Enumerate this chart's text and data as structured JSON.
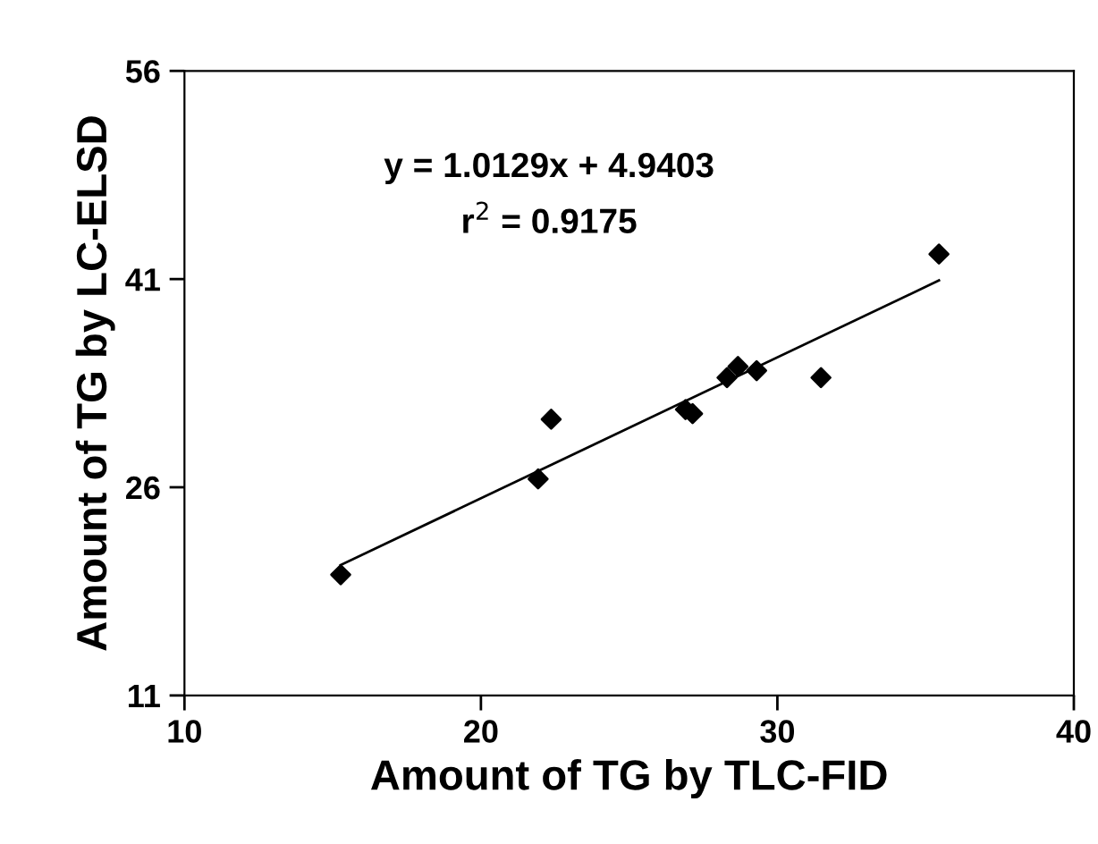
{
  "chart_data": {
    "type": "scatter",
    "xlabel": "Amount of TG by TLC-FID",
    "ylabel": "Amount of TG by LC-ELSD",
    "annotations": [
      "y = 1.0129x + 4.9403",
      "r$^{2}$ = 0.9175"
    ],
    "xlim": [
      10,
      40
    ],
    "ylim": [
      11,
      56
    ],
    "xticks": [
      10,
      20,
      30,
      40
    ],
    "yticks": [
      11,
      26,
      41,
      56
    ],
    "grid": false,
    "legend": false,
    "marker": "diamond",
    "series": [
      {
        "color": "#000000",
        "x": [
          15.27,
          21.93,
          22.37,
          26.9,
          27.14,
          28.3,
          28.67,
          29.3,
          31.47,
          35.45
        ],
        "values": [
          19.7,
          26.6,
          30.9,
          31.6,
          31.3,
          33.9,
          34.7,
          34.4,
          33.9,
          42.8
        ]
      },
      {
        "type": "line",
        "color": "#000000",
        "line_style": "solid",
        "marker": "none",
        "x": [
          15.27,
          35.45
        ],
        "values": [
          20.4,
          40.9
        ]
      }
    ]
  }
}
